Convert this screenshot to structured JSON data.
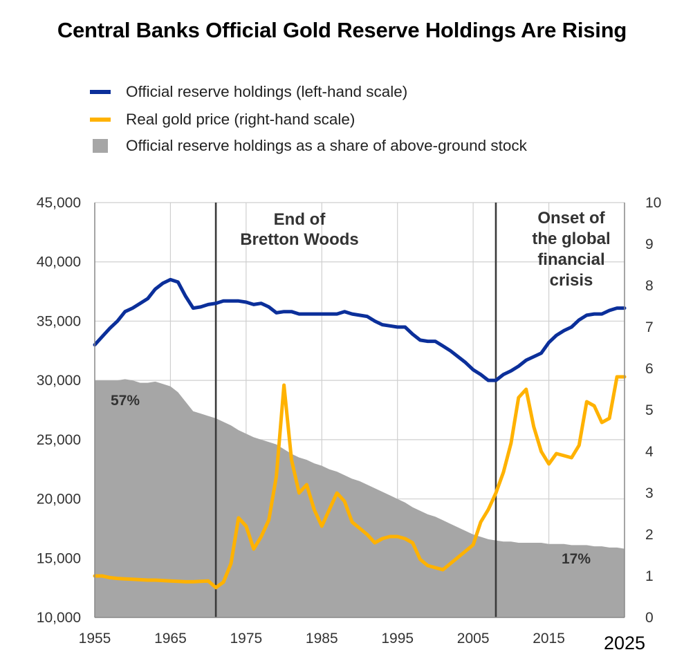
{
  "title": "Central Banks Official Gold Reserve Holdings Are Rising",
  "legend": [
    {
      "label": "Official reserve holdings (left-hand scale)",
      "color": "#0b2f9a",
      "kind": "line"
    },
    {
      "label": "Real gold price (right-hand scale)",
      "color": "#ffb200",
      "kind": "line"
    },
    {
      "label": "Official reserve holdings as a share of above-ground stock",
      "color": "#a6a6a6",
      "kind": "area"
    }
  ],
  "colors": {
    "reserves": "#0b2f9a",
    "price": "#ffb200",
    "share": "#a6a6a6",
    "grid": "#cfcfcf",
    "vline": "#3a3a3a"
  },
  "annotations": {
    "bretton": [
      "End of",
      "Bretton Woods"
    ],
    "crisis": [
      "Onset of",
      "the global",
      "financial",
      "crisis"
    ],
    "share_start": "57%",
    "share_end": "17%"
  },
  "chart_data": {
    "type": "line",
    "title": "Central Banks Official Gold Reserve Holdings Are Rising",
    "grid": true,
    "legend_position": "top",
    "x_ticks": [
      "1955",
      "1965",
      "1975",
      "1985",
      "1995",
      "2005",
      "2015",
      "2025"
    ],
    "y_left_ticks": [
      "10,000",
      "15,000",
      "20,000",
      "25,000",
      "30,000",
      "35,000",
      "40,000",
      "45,000"
    ],
    "y_right_ticks": [
      "0",
      "1",
      "2",
      "3",
      "4",
      "5",
      "6",
      "7",
      "8",
      "9",
      "10"
    ],
    "xlim": [
      1955,
      2025
    ],
    "ylim_left": [
      10000,
      45000
    ],
    "ylim_right": [
      0,
      10
    ],
    "vertical_markers": [
      1971,
      2008
    ],
    "series": [
      {
        "name": "Official reserve holdings (left-hand scale)",
        "axis": "left",
        "style": "line",
        "x": [
          1955,
          1956,
          1957,
          1958,
          1959,
          1960,
          1961,
          1962,
          1963,
          1964,
          1965,
          1966,
          1967,
          1968,
          1969,
          1970,
          1971,
          1972,
          1973,
          1974,
          1975,
          1976,
          1977,
          1978,
          1979,
          1980,
          1981,
          1982,
          1983,
          1984,
          1985,
          1986,
          1987,
          1988,
          1989,
          1990,
          1991,
          1992,
          1993,
          1994,
          1995,
          1996,
          1997,
          1998,
          1999,
          2000,
          2001,
          2002,
          2003,
          2004,
          2005,
          2006,
          2007,
          2008,
          2009,
          2010,
          2011,
          2012,
          2013,
          2014,
          2015,
          2016,
          2017,
          2018,
          2019,
          2020,
          2021,
          2022,
          2023,
          2024,
          2025
        ],
        "values": [
          33000,
          33700,
          34400,
          35000,
          35800,
          36100,
          36500,
          36900,
          37700,
          38200,
          38500,
          38300,
          37100,
          36100,
          36200,
          36400,
          36500,
          36700,
          36700,
          36700,
          36600,
          36400,
          36500,
          36200,
          35700,
          35800,
          35800,
          35600,
          35600,
          35600,
          35600,
          35600,
          35600,
          35800,
          35600,
          35500,
          35400,
          35000,
          34700,
          34600,
          34500,
          34500,
          33900,
          33400,
          33300,
          33300,
          32900,
          32500,
          32000,
          31500,
          30900,
          30500,
          30000,
          30000,
          30500,
          30800,
          31200,
          31700,
          32000,
          32300,
          33200,
          33800,
          34200,
          34500,
          35100,
          35500,
          35600,
          35600,
          35900,
          36100,
          36100
        ]
      },
      {
        "name": "Real gold price (right-hand scale)",
        "axis": "right",
        "style": "line",
        "x": [
          1955,
          1956,
          1957,
          1958,
          1959,
          1960,
          1961,
          1962,
          1963,
          1964,
          1965,
          1966,
          1967,
          1968,
          1969,
          1970,
          1971,
          1972,
          1973,
          1974,
          1975,
          1976,
          1977,
          1978,
          1979,
          1980,
          1981,
          1982,
          1983,
          1984,
          1985,
          1986,
          1987,
          1988,
          1989,
          1990,
          1991,
          1992,
          1993,
          1994,
          1995,
          1996,
          1997,
          1998,
          1999,
          2000,
          2001,
          2002,
          2003,
          2004,
          2005,
          2006,
          2007,
          2008,
          2009,
          2010,
          2011,
          2012,
          2013,
          2014,
          2015,
          2016,
          2017,
          2018,
          2019,
          2020,
          2021,
          2022,
          2023,
          2024,
          2025
        ],
        "values": [
          1.0,
          1.0,
          0.96,
          0.94,
          0.93,
          0.92,
          0.91,
          0.9,
          0.9,
          0.89,
          0.88,
          0.87,
          0.86,
          0.86,
          0.87,
          0.88,
          0.72,
          0.85,
          1.3,
          2.4,
          2.2,
          1.65,
          1.95,
          2.35,
          3.4,
          5.6,
          3.8,
          3.0,
          3.2,
          2.6,
          2.2,
          2.6,
          3.0,
          2.8,
          2.3,
          2.15,
          2.0,
          1.8,
          1.9,
          1.95,
          1.95,
          1.9,
          1.8,
          1.4,
          1.25,
          1.2,
          1.15,
          1.3,
          1.45,
          1.6,
          1.75,
          2.3,
          2.6,
          3.0,
          3.5,
          4.2,
          5.3,
          5.5,
          4.6,
          4.0,
          3.7,
          3.95,
          3.9,
          3.85,
          4.15,
          5.2,
          5.1,
          4.7,
          4.8,
          5.8,
          5.8
        ]
      },
      {
        "name": "Official reserve holdings as a share of above-ground stock",
        "axis": "left",
        "style": "area",
        "x": [
          1955,
          1956,
          1957,
          1958,
          1959,
          1960,
          1961,
          1962,
          1963,
          1964,
          1965,
          1966,
          1967,
          1968,
          1969,
          1970,
          1971,
          1972,
          1973,
          1974,
          1975,
          1976,
          1977,
          1978,
          1979,
          1980,
          1981,
          1982,
          1983,
          1984,
          1985,
          1986,
          1987,
          1988,
          1989,
          1990,
          1991,
          1992,
          1993,
          1994,
          1995,
          1996,
          1997,
          1998,
          1999,
          2000,
          2001,
          2002,
          2003,
          2004,
          2005,
          2006,
          2007,
          2008,
          2009,
          2010,
          2011,
          2012,
          2013,
          2014,
          2015,
          2016,
          2017,
          2018,
          2019,
          2020,
          2021,
          2022,
          2023,
          2024,
          2025
        ],
        "values": [
          30000,
          30000,
          30000,
          30000,
          30100,
          30000,
          29800,
          29800,
          29900,
          29700,
          29500,
          29000,
          28200,
          27400,
          27200,
          27000,
          26800,
          26500,
          26200,
          25800,
          25500,
          25200,
          25000,
          24800,
          24600,
          24200,
          23800,
          23500,
          23300,
          23000,
          22800,
          22500,
          22300,
          22000,
          21700,
          21500,
          21200,
          20900,
          20600,
          20300,
          20000,
          19700,
          19300,
          19000,
          18700,
          18500,
          18200,
          17900,
          17600,
          17300,
          17000,
          16800,
          16600,
          16500,
          16400,
          16400,
          16300,
          16300,
          16300,
          16300,
          16200,
          16200,
          16200,
          16100,
          16100,
          16100,
          16000,
          16000,
          15900,
          15900,
          15800
        ]
      }
    ]
  }
}
